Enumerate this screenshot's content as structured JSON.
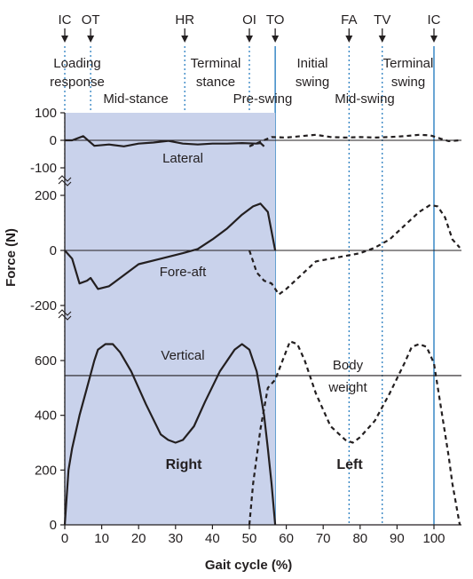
{
  "chart_data": {
    "type": "line",
    "xlabel": "Gait cycle (%)",
    "ylabel": "Force (N)",
    "x_ticks": [
      "0",
      "10",
      "20",
      "30",
      "40",
      "50",
      "60",
      "70",
      "80",
      "90",
      "100"
    ],
    "xlim": [
      0,
      107
    ],
    "events": [
      {
        "label": "IC",
        "x": 0
      },
      {
        "label": "OT",
        "x": 7
      },
      {
        "label": "HR",
        "x": 32.5
      },
      {
        "label": "OI",
        "x": 50
      },
      {
        "label": "TO",
        "x": 57
      },
      {
        "label": "FA",
        "x": 77
      },
      {
        "label": "TV",
        "x": 86
      },
      {
        "label": "IC",
        "x": 100
      }
    ],
    "phases": [
      {
        "lines": [
          "Loading",
          "response"
        ]
      },
      {
        "lines": [
          "Mid-stance"
        ]
      },
      {
        "lines": [
          "Terminal",
          "stance"
        ]
      },
      {
        "lines": [
          "Pre-swing"
        ]
      },
      {
        "lines": [
          "Initial",
          "swing"
        ]
      },
      {
        "lines": [
          "Mid-swing"
        ]
      },
      {
        "lines": [
          "Terminal",
          "swing"
        ]
      }
    ],
    "panels": [
      {
        "name": "Lateral",
        "y_ticks": [
          "100",
          "0",
          "-100"
        ],
        "ylim": [
          -100,
          100
        ],
        "right": [
          [
            0,
            0
          ],
          [
            2,
            0
          ],
          [
            5,
            15
          ],
          [
            8,
            -20
          ],
          [
            12,
            -15
          ],
          [
            16,
            -22
          ],
          [
            20,
            -12
          ],
          [
            24,
            -8
          ],
          [
            28,
            -2
          ],
          [
            32,
            -12
          ],
          [
            36,
            -15
          ],
          [
            40,
            -12
          ],
          [
            44,
            -12
          ],
          [
            48,
            -10
          ],
          [
            52,
            -12
          ],
          [
            53,
            -10
          ],
          [
            54,
            -22
          ]
        ],
        "left": [
          [
            50,
            -22
          ],
          [
            53,
            -5
          ],
          [
            56,
            12
          ],
          [
            60,
            10
          ],
          [
            64,
            15
          ],
          [
            68,
            20
          ],
          [
            72,
            12
          ],
          [
            76,
            10
          ],
          [
            80,
            12
          ],
          [
            84,
            10
          ],
          [
            88,
            12
          ],
          [
            92,
            15
          ],
          [
            96,
            20
          ],
          [
            99,
            18
          ],
          [
            102,
            5
          ],
          [
            104,
            -3
          ],
          [
            107,
            0
          ]
        ]
      },
      {
        "name": "Fore-aft",
        "y_ticks": [
          "200",
          "0",
          "-200"
        ],
        "ylim": [
          -240,
          200
        ],
        "right": [
          [
            0,
            0
          ],
          [
            2,
            -30
          ],
          [
            4,
            -120
          ],
          [
            6,
            -110
          ],
          [
            7,
            -100
          ],
          [
            9,
            -140
          ],
          [
            12,
            -130
          ],
          [
            16,
            -90
          ],
          [
            20,
            -50
          ],
          [
            26,
            -30
          ],
          [
            32,
            -10
          ],
          [
            36,
            5
          ],
          [
            40,
            40
          ],
          [
            44,
            80
          ],
          [
            48,
            130
          ],
          [
            51,
            160
          ],
          [
            53,
            170
          ],
          [
            55,
            140
          ],
          [
            57,
            0
          ]
        ],
        "left": [
          [
            50,
            0
          ],
          [
            51,
            -40
          ],
          [
            52,
            -80
          ],
          [
            54,
            -110
          ],
          [
            56,
            -120
          ],
          [
            58,
            -160
          ],
          [
            60,
            -140
          ],
          [
            64,
            -90
          ],
          [
            68,
            -40
          ],
          [
            72,
            -30
          ],
          [
            76,
            -20
          ],
          [
            80,
            -10
          ],
          [
            84,
            10
          ],
          [
            88,
            40
          ],
          [
            92,
            90
          ],
          [
            96,
            140
          ],
          [
            99,
            165
          ],
          [
            101,
            160
          ],
          [
            103,
            120
          ],
          [
            105,
            40
          ],
          [
            107,
            10
          ]
        ]
      },
      {
        "name": "Vertical",
        "y_ticks": [
          "600",
          "400",
          "200",
          "0"
        ],
        "ylim": [
          0,
          760
        ],
        "right": [
          [
            0,
            0
          ],
          [
            1,
            200
          ],
          [
            2,
            280
          ],
          [
            4,
            400
          ],
          [
            6,
            500
          ],
          [
            8,
            600
          ],
          [
            9,
            640
          ],
          [
            11,
            660
          ],
          [
            13,
            660
          ],
          [
            15,
            630
          ],
          [
            18,
            560
          ],
          [
            22,
            440
          ],
          [
            26,
            330
          ],
          [
            28,
            310
          ],
          [
            30,
            300
          ],
          [
            32,
            310
          ],
          [
            35,
            360
          ],
          [
            38,
            450
          ],
          [
            42,
            560
          ],
          [
            46,
            640
          ],
          [
            48,
            660
          ],
          [
            50,
            640
          ],
          [
            52,
            560
          ],
          [
            54,
            400
          ],
          [
            55,
            280
          ],
          [
            56,
            150
          ],
          [
            57,
            0
          ]
        ],
        "left": [
          [
            50,
            0
          ],
          [
            51,
            150
          ],
          [
            53,
            350
          ],
          [
            55,
            500
          ],
          [
            57,
            530
          ],
          [
            59,
            600
          ],
          [
            61,
            670
          ],
          [
            63,
            660
          ],
          [
            65,
            600
          ],
          [
            68,
            480
          ],
          [
            72,
            360
          ],
          [
            76,
            310
          ],
          [
            78,
            300
          ],
          [
            80,
            320
          ],
          [
            84,
            380
          ],
          [
            88,
            480
          ],
          [
            92,
            590
          ],
          [
            94,
            650
          ],
          [
            96,
            660
          ],
          [
            98,
            650
          ],
          [
            100,
            590
          ],
          [
            102,
            420
          ],
          [
            104,
            250
          ],
          [
            105,
            150
          ],
          [
            107,
            0
          ]
        ]
      }
    ],
    "body_weight": {
      "value": 545,
      "lines": [
        "Body",
        "weight"
      ]
    },
    "side_labels": {
      "right": "Right",
      "left": "Left"
    },
    "colors": {
      "stance_fill": "#c9d2eb",
      "event_line": "#1a75bc",
      "to_line": "#1a75bc",
      "curve": "#231f20"
    }
  }
}
